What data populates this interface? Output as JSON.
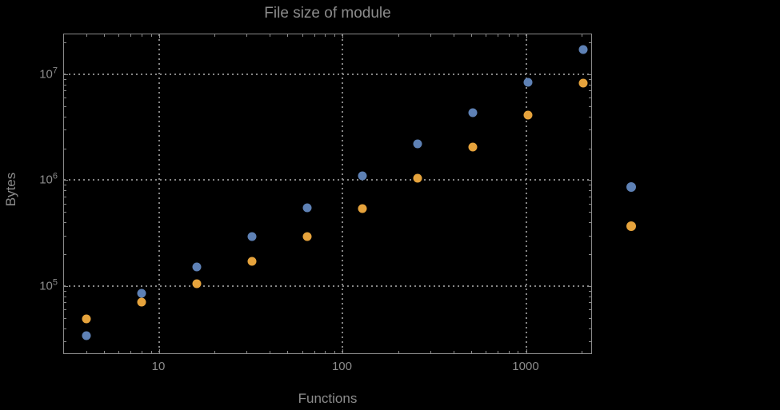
{
  "title": "File size of module",
  "colors": {
    "background": "#000000",
    "frame": "#8a8a8a",
    "grid": "#858585",
    "text": "#8c8c8c",
    "series_blue": "#5e81b5",
    "series_orange": "#e6a33c"
  },
  "chart_data": {
    "type": "scatter",
    "title": "File size of module",
    "xlabel": "Functions",
    "ylabel": "Bytes",
    "xscale": "log",
    "yscale": "log",
    "grid": true,
    "xlim": [
      3.03,
      2300
    ],
    "ylim": [
      22400,
      23800000
    ],
    "x_major_ticks": [
      {
        "value": 10,
        "label": "10"
      },
      {
        "value": 100,
        "label": "100"
      },
      {
        "value": 1000,
        "label": "1000"
      }
    ],
    "y_major_ticks": [
      {
        "value": 100000,
        "base": "10",
        "exp": "5"
      },
      {
        "value": 1000000,
        "base": "10",
        "exp": "6"
      },
      {
        "value": 10000000,
        "base": "10",
        "exp": "7"
      }
    ],
    "categories": [
      4,
      8,
      16,
      32,
      64,
      128,
      256,
      512,
      1024,
      2048
    ],
    "series": [
      {
        "name": "blue",
        "color": "#5e81b5",
        "values": [
          34000,
          85000,
          152000,
          294000,
          549000,
          1100000,
          2200000,
          4340000,
          8400000,
          17100000
        ]
      },
      {
        "name": "orange",
        "color": "#e6a33c",
        "values": [
          49000,
          70600,
          105000,
          171000,
          294000,
          540000,
          1040000,
          2060000,
          4100000,
          8300000
        ]
      }
    ],
    "legend": {
      "position": "right-outside",
      "labels_visible": false,
      "markers": [
        {
          "series": "blue",
          "color": "#5e81b5"
        },
        {
          "series": "orange",
          "color": "#e6a33c"
        }
      ]
    }
  }
}
